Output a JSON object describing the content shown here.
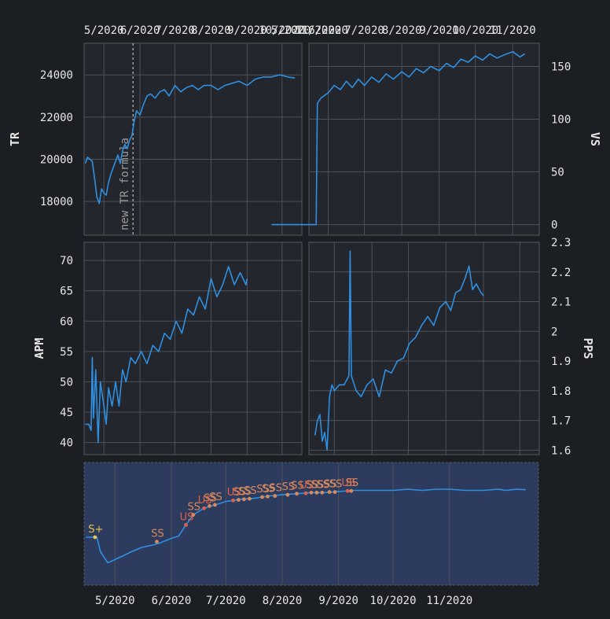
{
  "colors": {
    "background": "#1b1e22",
    "panel": "#23262d",
    "overview_panel": "#2d3b5e",
    "grid": "#4d5158",
    "series": "#2f8fe0",
    "vline": "#bdbdbd",
    "marker_ss": "#d78a5a",
    "marker_us": "#e0604a",
    "marker_splus": "#e8c84a"
  },
  "chart_data": [
    {
      "panel": "TR",
      "type": "line",
      "ylabel": "TR",
      "xticks": [
        "5/2020",
        "6/2020",
        "7/2020",
        "8/2020",
        "9/2020",
        "10/2020",
        "11/2020"
      ],
      "yticks": [
        "24000",
        "22000",
        "20000",
        "18000"
      ],
      "ylim": [
        16400,
        25500
      ],
      "annotation": {
        "x": "5/26/2020",
        "text": "new TR formula"
      },
      "points": [
        [
          "4/15",
          19800
        ],
        [
          "4/17",
          20100
        ],
        [
          "4/19",
          20000
        ],
        [
          "4/21",
          19900
        ],
        [
          "4/23",
          19100
        ],
        [
          "4/25",
          18200
        ],
        [
          "4/27",
          17900
        ],
        [
          "4/29",
          18600
        ],
        [
          "5/1",
          18400
        ],
        [
          "5/3",
          18300
        ],
        [
          "5/5",
          18900
        ],
        [
          "5/7",
          19300
        ],
        [
          "5/9",
          19600
        ],
        [
          "5/11",
          19900
        ],
        [
          "5/13",
          20200
        ],
        [
          "5/15",
          19800
        ],
        [
          "5/17",
          20400
        ],
        [
          "5/19",
          20700
        ],
        [
          "5/21",
          20500
        ],
        [
          "5/23",
          20900
        ],
        [
          "5/25",
          21100
        ],
        [
          "5/27",
          21800
        ],
        [
          "5/29",
          22300
        ],
        [
          "6/1",
          22100
        ],
        [
          "6/4",
          22600
        ],
        [
          "6/7",
          23000
        ],
        [
          "6/10",
          23100
        ],
        [
          "6/14",
          22900
        ],
        [
          "6/18",
          23200
        ],
        [
          "6/22",
          23300
        ],
        [
          "6/26",
          23000
        ],
        [
          "7/1",
          23500
        ],
        [
          "7/6",
          23200
        ],
        [
          "7/11",
          23400
        ],
        [
          "7/16",
          23500
        ],
        [
          "7/21",
          23300
        ],
        [
          "7/26",
          23500
        ],
        [
          "8/1",
          23500
        ],
        [
          "8/7",
          23300
        ],
        [
          "8/13",
          23500
        ],
        [
          "8/19",
          23600
        ],
        [
          "8/25",
          23700
        ],
        [
          "9/1",
          23500
        ],
        [
          "9/8",
          23800
        ],
        [
          "9/15",
          23900
        ],
        [
          "9/22",
          23900
        ],
        [
          "9/29",
          24000
        ],
        [
          "10/6",
          23900
        ],
        [
          "10/12",
          23850
        ]
      ]
    },
    {
      "panel": "VS",
      "type": "line",
      "ylabel": "VS",
      "xticks": [
        "5/2020",
        "6/2020",
        "7/2020",
        "8/2020",
        "9/2020",
        "10/2020",
        "11/2020"
      ],
      "yticks": [
        "150",
        "100",
        "50",
        "0"
      ],
      "ylim": [
        -10,
        172
      ],
      "points": [
        [
          "4/15",
          0
        ],
        [
          "5/1",
          0
        ],
        [
          "5/22",
          0
        ],
        [
          "5/23",
          115
        ],
        [
          "5/26",
          120
        ],
        [
          "6/1",
          125
        ],
        [
          "6/6",
          132
        ],
        [
          "6/11",
          128
        ],
        [
          "6/16",
          136
        ],
        [
          "6/21",
          130
        ],
        [
          "6/26",
          138
        ],
        [
          "7/1",
          132
        ],
        [
          "7/7",
          140
        ],
        [
          "7/13",
          135
        ],
        [
          "7/19",
          143
        ],
        [
          "7/25",
          138
        ],
        [
          "8/1",
          145
        ],
        [
          "8/7",
          140
        ],
        [
          "8/13",
          148
        ],
        [
          "8/19",
          144
        ],
        [
          "8/25",
          150
        ],
        [
          "9/1",
          146
        ],
        [
          "9/7",
          153
        ],
        [
          "9/13",
          149
        ],
        [
          "9/19",
          157
        ],
        [
          "9/25",
          154
        ],
        [
          "10/1",
          160
        ],
        [
          "10/7",
          156
        ],
        [
          "10/13",
          162
        ],
        [
          "10/19",
          158
        ],
        [
          "10/25",
          161
        ],
        [
          "11/1",
          164
        ],
        [
          "11/7",
          159
        ],
        [
          "11/11",
          162
        ]
      ]
    },
    {
      "panel": "APM",
      "type": "line",
      "ylabel": "APM",
      "xticks": [],
      "yticks": [
        "70",
        "65",
        "60",
        "55",
        "50",
        "45",
        "40"
      ],
      "ylim": [
        38,
        73
      ],
      "points": [
        [
          "4/15",
          43
        ],
        [
          "4/18",
          43
        ],
        [
          "4/20",
          42
        ],
        [
          "4/21",
          54
        ],
        [
          "4/22",
          44
        ],
        [
          "4/24",
          52
        ],
        [
          "4/26",
          40
        ],
        [
          "4/28",
          50
        ],
        [
          "5/1",
          46
        ],
        [
          "5/3",
          43
        ],
        [
          "5/5",
          49
        ],
        [
          "5/8",
          46
        ],
        [
          "5/11",
          50
        ],
        [
          "5/14",
          46
        ],
        [
          "5/17",
          52
        ],
        [
          "5/20",
          50
        ],
        [
          "5/24",
          54
        ],
        [
          "5/28",
          53
        ],
        [
          "6/2",
          55
        ],
        [
          "6/7",
          53
        ],
        [
          "6/12",
          56
        ],
        [
          "6/17",
          55
        ],
        [
          "6/22",
          58
        ],
        [
          "6/27",
          57
        ],
        [
          "7/2",
          60
        ],
        [
          "7/7",
          58
        ],
        [
          "7/12",
          62
        ],
        [
          "7/17",
          61
        ],
        [
          "7/22",
          64
        ],
        [
          "7/27",
          62
        ],
        [
          "8/1",
          67
        ],
        [
          "8/6",
          64
        ],
        [
          "8/11",
          66
        ],
        [
          "8/16",
          69
        ],
        [
          "8/21",
          66
        ],
        [
          "8/26",
          68
        ],
        [
          "8/31",
          66
        ],
        [
          "9/1",
          67
        ]
      ]
    },
    {
      "panel": "PPS",
      "type": "line",
      "ylabel": "PPS",
      "xticks": [],
      "yticks": [
        "2.3",
        "2.2",
        "2.1",
        "2",
        "1.9",
        "1.8",
        "1.7",
        "1.6"
      ],
      "ylim": [
        1.585,
        2.3
      ],
      "points": [
        [
          "4/15",
          1.65
        ],
        [
          "4/17",
          1.7
        ],
        [
          "4/19",
          1.72
        ],
        [
          "4/21",
          1.63
        ],
        [
          "4/23",
          1.66
        ],
        [
          "4/25",
          1.6
        ],
        [
          "4/27",
          1.78
        ],
        [
          "4/29",
          1.82
        ],
        [
          "5/1",
          1.8
        ],
        [
          "5/5",
          1.82
        ],
        [
          "5/9",
          1.82
        ],
        [
          "5/13",
          1.85
        ],
        [
          "5/14",
          2.27
        ],
        [
          "5/15",
          1.85
        ],
        [
          "5/19",
          1.8
        ],
        [
          "5/23",
          1.78
        ],
        [
          "5/28",
          1.82
        ],
        [
          "6/2",
          1.84
        ],
        [
          "6/7",
          1.78
        ],
        [
          "6/12",
          1.87
        ],
        [
          "6/17",
          1.86
        ],
        [
          "6/22",
          1.9
        ],
        [
          "6/27",
          1.91
        ],
        [
          "7/2",
          1.96
        ],
        [
          "7/7",
          1.98
        ],
        [
          "7/12",
          2.02
        ],
        [
          "7/17",
          2.05
        ],
        [
          "7/22",
          2.02
        ],
        [
          "7/27",
          2.08
        ],
        [
          "8/1",
          2.1
        ],
        [
          "8/5",
          2.07
        ],
        [
          "8/9",
          2.13
        ],
        [
          "8/13",
          2.14
        ],
        [
          "8/17",
          2.18
        ],
        [
          "8/20",
          2.22
        ],
        [
          "8/23",
          2.14
        ],
        [
          "8/26",
          2.16
        ],
        [
          "8/30",
          2.13
        ],
        [
          "9/1",
          2.12
        ]
      ]
    },
    {
      "panel": "overview",
      "type": "line",
      "xticks": [
        "5/2020",
        "6/2020",
        "7/2020",
        "8/2020",
        "9/2020",
        "10/2020",
        "11/2020"
      ],
      "ylim": [
        16000,
        27000
      ],
      "points": [
        [
          "4/15",
          20300
        ],
        [
          "4/21",
          20300
        ],
        [
          "4/23",
          19000
        ],
        [
          "4/27",
          18000
        ],
        [
          "5/1",
          18300
        ],
        [
          "5/5",
          18600
        ],
        [
          "5/10",
          19000
        ],
        [
          "5/16",
          19400
        ],
        [
          "5/22",
          19600
        ],
        [
          "5/26",
          19800
        ],
        [
          "6/1",
          20200
        ],
        [
          "6/5",
          20400
        ],
        [
          "6/9",
          21400
        ],
        [
          "6/13",
          22300
        ],
        [
          "6/19",
          22900
        ],
        [
          "6/25",
          23200
        ],
        [
          "7/1",
          23500
        ],
        [
          "7/9",
          23700
        ],
        [
          "7/17",
          23800
        ],
        [
          "7/25",
          24000
        ],
        [
          "8/1",
          24100
        ],
        [
          "8/9",
          24200
        ],
        [
          "8/17",
          24300
        ],
        [
          "8/25",
          24300
        ],
        [
          "9/1",
          24400
        ],
        [
          "9/9",
          24500
        ],
        [
          "9/17",
          24500
        ],
        [
          "9/25",
          24500
        ],
        [
          "10/1",
          24500
        ],
        [
          "10/9",
          24600
        ],
        [
          "10/17",
          24500
        ],
        [
          "10/25",
          24600
        ],
        [
          "11/1",
          24600
        ],
        [
          "11/10",
          24500
        ],
        [
          "11/16",
          24500
        ],
        [
          "11/20",
          24500
        ],
        [
          "11/28",
          24600
        ],
        [
          "12/2",
          24500
        ],
        [
          "12/8",
          24600
        ],
        [
          "12/13",
          24550
        ]
      ],
      "markers": [
        {
          "x": "4/20",
          "y": 20300,
          "label": "S+",
          "kind": "splus"
        },
        {
          "x": "5/24",
          "y": 19900,
          "label": "SS",
          "kind": "ss"
        },
        {
          "x": "6/9",
          "y": 21400,
          "label": "US",
          "kind": "us"
        },
        {
          "x": "6/13",
          "y": 22300,
          "label": "SS",
          "kind": "ss"
        },
        {
          "x": "6/19",
          "y": 22900,
          "label": "US",
          "kind": "us"
        },
        {
          "x": "6/22",
          "y": 23100,
          "label": "SS",
          "kind": "ss"
        },
        {
          "x": "6/25",
          "y": 23200,
          "label": "SS",
          "kind": "ss"
        },
        {
          "x": "7/5",
          "y": 23600,
          "label": "US",
          "kind": "us"
        },
        {
          "x": "7/8",
          "y": 23650,
          "label": "SS",
          "kind": "ss"
        },
        {
          "x": "7/11",
          "y": 23700,
          "label": "SS",
          "kind": "ss"
        },
        {
          "x": "7/14",
          "y": 23750,
          "label": "SS",
          "kind": "ss"
        },
        {
          "x": "7/21",
          "y": 23900,
          "label": "SS",
          "kind": "ss"
        },
        {
          "x": "7/24",
          "y": 23950,
          "label": "SS",
          "kind": "ss"
        },
        {
          "x": "7/28",
          "y": 24000,
          "label": "SS",
          "kind": "ss"
        },
        {
          "x": "8/4",
          "y": 24100,
          "label": "SS",
          "kind": "ss"
        },
        {
          "x": "8/9",
          "y": 24200,
          "label": "SS",
          "kind": "ss"
        },
        {
          "x": "8/14",
          "y": 24250,
          "label": "US",
          "kind": "us"
        },
        {
          "x": "8/17",
          "y": 24300,
          "label": "SS",
          "kind": "ss"
        },
        {
          "x": "8/20",
          "y": 24300,
          "label": "SS",
          "kind": "ss"
        },
        {
          "x": "8/23",
          "y": 24300,
          "label": "SS",
          "kind": "ss"
        },
        {
          "x": "8/27",
          "y": 24350,
          "label": "SS",
          "kind": "ss"
        },
        {
          "x": "8/30",
          "y": 24350,
          "label": "SS",
          "kind": "ss"
        },
        {
          "x": "9/6",
          "y": 24450,
          "label": "US",
          "kind": "us"
        },
        {
          "x": "9/8",
          "y": 24450,
          "label": "SS",
          "kind": "ss"
        }
      ]
    }
  ]
}
